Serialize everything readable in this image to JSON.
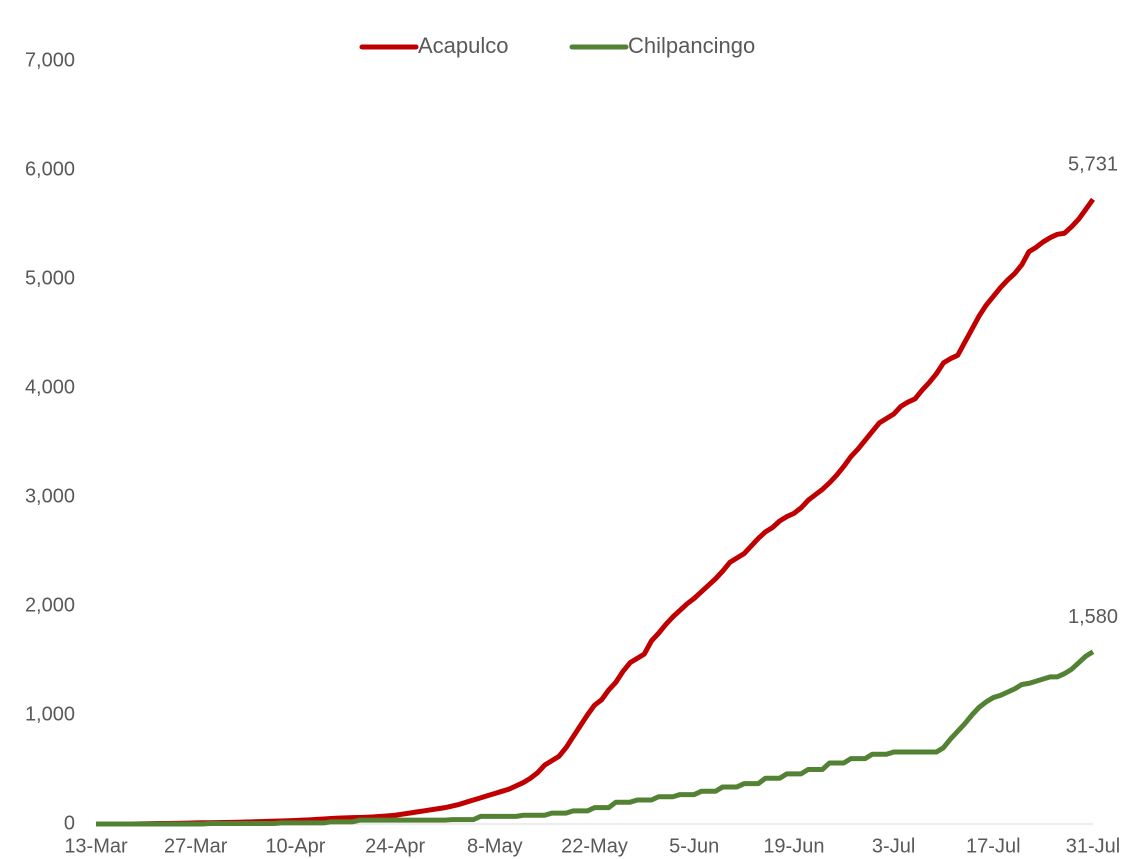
{
  "chart_data": {
    "type": "line",
    "categories": [
      "13-Mar",
      null,
      null,
      null,
      null,
      null,
      null,
      null,
      null,
      null,
      null,
      null,
      null,
      null,
      "27-Mar",
      null,
      null,
      null,
      null,
      null,
      null,
      null,
      null,
      null,
      null,
      null,
      null,
      null,
      "10-Apr",
      null,
      null,
      null,
      null,
      null,
      null,
      null,
      null,
      null,
      null,
      null,
      null,
      null,
      "24-Apr",
      null,
      null,
      null,
      null,
      null,
      null,
      null,
      null,
      null,
      null,
      null,
      null,
      null,
      "8-May",
      null,
      null,
      null,
      null,
      null,
      null,
      null,
      null,
      null,
      null,
      null,
      null,
      null,
      "22-May",
      null,
      null,
      null,
      null,
      null,
      null,
      null,
      null,
      null,
      null,
      null,
      null,
      null,
      "5-Jun",
      null,
      null,
      null,
      null,
      null,
      null,
      null,
      null,
      null,
      null,
      null,
      null,
      null,
      "19-Jun",
      null,
      null,
      null,
      null,
      null,
      null,
      null,
      null,
      null,
      null,
      null,
      null,
      null,
      "3-Jul",
      null,
      null,
      null,
      null,
      null,
      null,
      null,
      null,
      null,
      null,
      null,
      null,
      null,
      "17-Jul",
      null,
      null,
      null,
      null,
      null,
      null,
      null,
      null,
      null,
      null,
      null,
      null,
      null,
      "31-Jul"
    ],
    "series": [
      {
        "name": "Acapulco",
        "color": "#c00000",
        "values": [
          0,
          0,
          0,
          0,
          0,
          0,
          1,
          2,
          3,
          4,
          5,
          6,
          7,
          8,
          10,
          11,
          12,
          13,
          14,
          15,
          16,
          18,
          20,
          22,
          24,
          26,
          28,
          30,
          32,
          35,
          38,
          42,
          46,
          50,
          54,
          56,
          58,
          60,
          62,
          65,
          70,
          75,
          80,
          90,
          100,
          110,
          120,
          130,
          140,
          150,
          165,
          180,
          200,
          220,
          240,
          260,
          280,
          300,
          320,
          350,
          380,
          420,
          470,
          540,
          580,
          620,
          700,
          800,
          900,
          1000,
          1090,
          1140,
          1230,
          1300,
          1400,
          1480,
          1520,
          1560,
          1680,
          1750,
          1830,
          1900,
          1960,
          2020,
          2070,
          2130,
          2190,
          2250,
          2320,
          2400,
          2440,
          2480,
          2550,
          2620,
          2680,
          2720,
          2780,
          2820,
          2850,
          2900,
          2970,
          3020,
          3070,
          3130,
          3200,
          3280,
          3370,
          3440,
          3520,
          3600,
          3680,
          3720,
          3760,
          3830,
          3870,
          3900,
          3980,
          4050,
          4130,
          4230,
          4270,
          4300,
          4420,
          4540,
          4660,
          4760,
          4840,
          4920,
          4990,
          5050,
          5130,
          5250,
          5290,
          5340,
          5380,
          5410,
          5420,
          5480,
          5550,
          5640,
          5731
        ],
        "value_labels": [
          null,
          null,
          null,
          null,
          null,
          null,
          null,
          null,
          null,
          null,
          null,
          null,
          null,
          null,
          null,
          null,
          null,
          null,
          null,
          null,
          null,
          null,
          null,
          null,
          null,
          null,
          null,
          null,
          null,
          null,
          null,
          null,
          null,
          null,
          null,
          null,
          null,
          null,
          null,
          null,
          null,
          null,
          null,
          null,
          null,
          null,
          null,
          null,
          null,
          null,
          null,
          null,
          null,
          null,
          null,
          null,
          null,
          null,
          null,
          null,
          null,
          null,
          null,
          null,
          null,
          null,
          null,
          null,
          null,
          null,
          null,
          null,
          null,
          null,
          null,
          null,
          null,
          null,
          null,
          null,
          null,
          null,
          null,
          null,
          null,
          null,
          null,
          null,
          null,
          null,
          null,
          null,
          null,
          null,
          null,
          null,
          null,
          null,
          null,
          null,
          null,
          null,
          null,
          null,
          null,
          null,
          null,
          null,
          null,
          null,
          null,
          null,
          null,
          null,
          null,
          null,
          null,
          null,
          null,
          null,
          null,
          null,
          null,
          null,
          null,
          null,
          null,
          null,
          null,
          null,
          null,
          null,
          null,
          null,
          null,
          null,
          null,
          null,
          null,
          null,
          "5,731"
        ]
      },
      {
        "name": "Chilpancingo",
        "color": "#548235",
        "values": [
          0,
          0,
          0,
          0,
          0,
          0,
          0,
          0,
          0,
          0,
          0,
          0,
          0,
          0,
          0,
          0,
          5,
          5,
          5,
          5,
          5,
          5,
          5,
          5,
          5,
          5,
          10,
          10,
          10,
          10,
          10,
          10,
          10,
          20,
          20,
          20,
          20,
          35,
          35,
          35,
          35,
          35,
          35,
          35,
          35,
          35,
          35,
          35,
          35,
          35,
          40,
          40,
          40,
          40,
          70,
          70,
          70,
          70,
          70,
          70,
          80,
          80,
          80,
          80,
          100,
          100,
          100,
          120,
          120,
          120,
          150,
          150,
          150,
          200,
          200,
          200,
          220,
          220,
          220,
          250,
          250,
          250,
          270,
          270,
          270,
          300,
          300,
          300,
          340,
          340,
          340,
          370,
          370,
          370,
          420,
          420,
          420,
          460,
          460,
          460,
          500,
          500,
          500,
          560,
          560,
          560,
          600,
          600,
          600,
          640,
          640,
          640,
          660,
          660,
          660,
          660,
          660,
          660,
          660,
          700,
          780,
          850,
          920,
          1000,
          1070,
          1120,
          1160,
          1180,
          1210,
          1240,
          1280,
          1290,
          1310,
          1330,
          1350,
          1350,
          1380,
          1420,
          1480,
          1540,
          1580
        ],
        "value_labels": [
          null,
          null,
          null,
          null,
          null,
          null,
          null,
          null,
          null,
          null,
          null,
          null,
          null,
          null,
          null,
          null,
          null,
          null,
          null,
          null,
          null,
          null,
          null,
          null,
          null,
          null,
          null,
          null,
          null,
          null,
          null,
          null,
          null,
          null,
          null,
          null,
          null,
          null,
          null,
          null,
          null,
          null,
          null,
          null,
          null,
          null,
          null,
          null,
          null,
          null,
          null,
          null,
          null,
          null,
          null,
          null,
          null,
          null,
          null,
          null,
          null,
          null,
          null,
          null,
          null,
          null,
          null,
          null,
          null,
          null,
          null,
          null,
          null,
          null,
          null,
          null,
          null,
          null,
          null,
          null,
          null,
          null,
          null,
          null,
          null,
          null,
          null,
          null,
          null,
          null,
          null,
          null,
          null,
          null,
          null,
          null,
          null,
          null,
          null,
          null,
          null,
          null,
          null,
          null,
          null,
          null,
          null,
          null,
          null,
          null,
          null,
          null,
          null,
          null,
          null,
          null,
          null,
          null,
          null,
          null,
          null,
          null,
          null,
          null,
          null,
          null,
          null,
          null,
          null,
          null,
          null,
          null,
          null,
          null,
          null,
          null,
          null,
          null,
          null,
          null,
          "1,580"
        ]
      }
    ],
    "ylim": [
      0,
      7000
    ],
    "yticks": [
      0,
      {
        "value": 1000,
        "label": "1,000"
      },
      {
        "value": 2000,
        "label": "2,000"
      },
      {
        "value": 3000,
        "label": "3,000"
      },
      {
        "value": 4000,
        "label": "4,000"
      },
      {
        "value": 5000,
        "label": "5,000"
      },
      {
        "value": 6000,
        "label": "6,000"
      },
      {
        "value": 7000,
        "label": "7,000"
      }
    ],
    "grid": false,
    "legend": "top"
  }
}
